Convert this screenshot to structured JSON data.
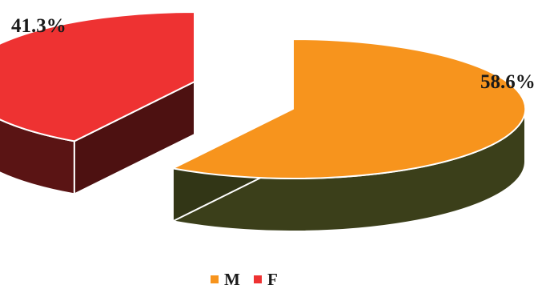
{
  "chart_data": {
    "type": "pie",
    "style": "3d-exploded",
    "slices": [
      {
        "label": "M",
        "value": 58.6,
        "data_label": "58.6%",
        "color": "#F7941D",
        "side_color": "#3B3F1A"
      },
      {
        "label": "F",
        "value": 41.3,
        "data_label": "41.3%",
        "color": "#EE3232",
        "side_color": "#5A1414"
      }
    ],
    "legend": {
      "position": "bottom",
      "items": [
        {
          "label": "M",
          "color": "#F7941D"
        },
        {
          "label": "F",
          "color": "#EE3232"
        }
      ]
    }
  }
}
